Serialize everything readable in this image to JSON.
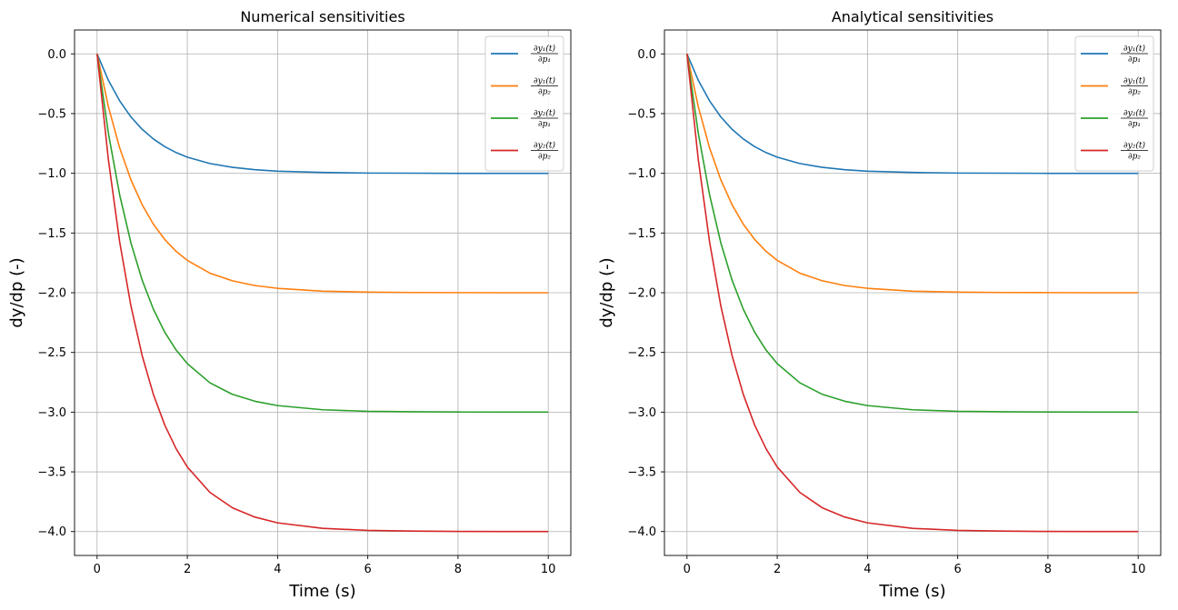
{
  "chart_data": [
    {
      "type": "line",
      "title": "Numerical sensitivities",
      "xlabel": "Time (s)",
      "ylabel": "dy/dp (-)",
      "xlim": [
        -0.5,
        10.5
      ],
      "ylim": [
        -4.2,
        0.2
      ],
      "xticks": [
        0,
        2,
        4,
        6,
        8,
        10
      ],
      "yticks": [
        0.0,
        -0.5,
        -1.0,
        -1.5,
        -2.0,
        -2.5,
        -3.0,
        -3.5,
        -4.0
      ],
      "grid": true,
      "legend_position": "top-right",
      "x": [
        0,
        0.25,
        0.5,
        0.75,
        1.0,
        1.25,
        1.5,
        1.75,
        2.0,
        2.5,
        3.0,
        3.5,
        4.0,
        5.0,
        6.0,
        7.0,
        8.0,
        9.0,
        10.0
      ],
      "series": [
        {
          "name": "∂y1(t)/∂p1",
          "num": "∂y₁(t)",
          "den": "∂p₁",
          "color": "#1f77b4",
          "values": [
            0.0,
            -0.221,
            -0.393,
            -0.528,
            -0.632,
            -0.713,
            -0.777,
            -0.826,
            -0.865,
            -0.918,
            -0.95,
            -0.97,
            -0.982,
            -0.993,
            -0.998,
            -0.999,
            -1.0,
            -1.0,
            -1.0
          ]
        },
        {
          "name": "∂y1(t)/∂p2",
          "num": "∂y₁(t)",
          "den": "∂p₂",
          "color": "#ff7f0e",
          "values": [
            0.0,
            -0.442,
            -0.787,
            -1.055,
            -1.264,
            -1.427,
            -1.554,
            -1.653,
            -1.729,
            -1.836,
            -1.9,
            -1.94,
            -1.963,
            -1.987,
            -1.995,
            -1.998,
            -1.999,
            -2.0,
            -2.0
          ]
        },
        {
          "name": "∂y2(t)/∂p1",
          "num": "∂y₂(t)",
          "den": "∂p₁",
          "color": "#2ca02c",
          "values": [
            0.0,
            -0.664,
            -1.18,
            -1.583,
            -1.896,
            -2.14,
            -2.331,
            -2.479,
            -2.594,
            -2.754,
            -2.851,
            -2.909,
            -2.945,
            -2.98,
            -2.993,
            -2.997,
            -2.999,
            -3.0,
            -3.0
          ]
        },
        {
          "name": "∂y2(t)/∂p2",
          "num": "∂y₂(t)",
          "den": "∂p₂",
          "color": "#d62728",
          "values": [
            0.0,
            -0.885,
            -1.574,
            -2.111,
            -2.528,
            -2.854,
            -3.108,
            -3.305,
            -3.459,
            -3.672,
            -3.801,
            -3.879,
            -3.927,
            -3.973,
            -3.99,
            -3.996,
            -3.999,
            -4.0,
            -4.0
          ]
        }
      ]
    },
    {
      "type": "line",
      "title": "Analytical sensitivities",
      "xlabel": "Time (s)",
      "ylabel": "dy/dp (-)",
      "xlim": [
        -0.5,
        10.5
      ],
      "ylim": [
        -4.2,
        0.2
      ],
      "xticks": [
        0,
        2,
        4,
        6,
        8,
        10
      ],
      "yticks": [
        0.0,
        -0.5,
        -1.0,
        -1.5,
        -2.0,
        -2.5,
        -3.0,
        -3.5,
        -4.0
      ],
      "grid": true,
      "legend_position": "top-right",
      "x": [
        0,
        0.25,
        0.5,
        0.75,
        1.0,
        1.25,
        1.5,
        1.75,
        2.0,
        2.5,
        3.0,
        3.5,
        4.0,
        5.0,
        6.0,
        7.0,
        8.0,
        9.0,
        10.0
      ],
      "series": [
        {
          "name": "∂y1(t)/∂p1",
          "num": "∂y₁(t)",
          "den": "∂p₁",
          "color": "#1f77b4",
          "values": [
            0.0,
            -0.221,
            -0.393,
            -0.528,
            -0.632,
            -0.713,
            -0.777,
            -0.826,
            -0.865,
            -0.918,
            -0.95,
            -0.97,
            -0.982,
            -0.993,
            -0.998,
            -0.999,
            -1.0,
            -1.0,
            -1.0
          ]
        },
        {
          "name": "∂y1(t)/∂p2",
          "num": "∂y₁(t)",
          "den": "∂p₂",
          "color": "#ff7f0e",
          "values": [
            0.0,
            -0.442,
            -0.787,
            -1.055,
            -1.264,
            -1.427,
            -1.554,
            -1.653,
            -1.729,
            -1.836,
            -1.9,
            -1.94,
            -1.963,
            -1.987,
            -1.995,
            -1.998,
            -1.999,
            -2.0,
            -2.0
          ]
        },
        {
          "name": "∂y2(t)/∂p1",
          "num": "∂y₂(t)",
          "den": "∂p₁",
          "color": "#2ca02c",
          "values": [
            0.0,
            -0.664,
            -1.18,
            -1.583,
            -1.896,
            -2.14,
            -2.331,
            -2.479,
            -2.594,
            -2.754,
            -2.851,
            -2.909,
            -2.945,
            -2.98,
            -2.993,
            -2.997,
            -2.999,
            -3.0,
            -3.0
          ]
        },
        {
          "name": "∂y2(t)/∂p2",
          "num": "∂y₂(t)",
          "den": "∂p₂",
          "color": "#d62728",
          "values": [
            0.0,
            -0.885,
            -1.574,
            -2.111,
            -2.528,
            -2.854,
            -3.108,
            -3.305,
            -3.459,
            -3.672,
            -3.801,
            -3.879,
            -3.927,
            -3.973,
            -3.99,
            -3.996,
            -3.999,
            -4.0,
            -4.0
          ]
        }
      ]
    }
  ]
}
